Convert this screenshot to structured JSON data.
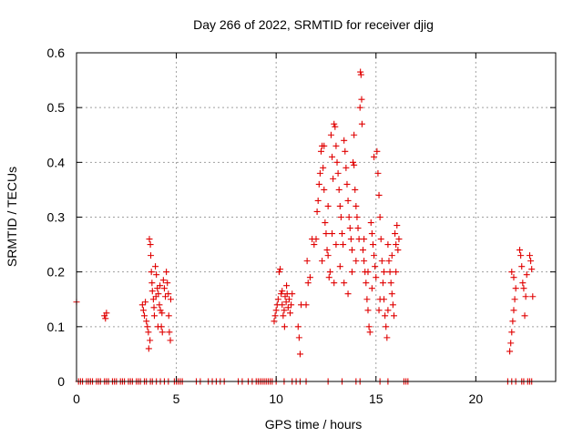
{
  "chart_data": {
    "type": "scatter",
    "title": "Day 266 of 2022, SRMTID for receiver djig",
    "xlabel": "GPS time / hours",
    "ylabel": "SRMTID / TECUs",
    "xlim": [
      0,
      24
    ],
    "ylim": [
      0,
      0.6
    ],
    "x_ticks": [
      0,
      5,
      10,
      15,
      20
    ],
    "x_tick_labels": [
      "0",
      "5",
      "10",
      "15",
      "20"
    ],
    "y_ticks": [
      0,
      0.1,
      0.2,
      0.3,
      0.4,
      0.5,
      0.6
    ],
    "y_tick_labels": [
      "0",
      "0.1",
      "0.2",
      "0.3",
      "0.4",
      "0.5",
      "0.6"
    ],
    "grid": true,
    "marker": "plus",
    "color": "#e00000",
    "series": [
      {
        "name": "SRMTID",
        "points": [
          [
            0.0,
            0.145
          ],
          [
            1.4,
            0.12
          ],
          [
            1.45,
            0.115
          ],
          [
            1.5,
            0.125
          ],
          [
            3.3,
            0.14
          ],
          [
            3.35,
            0.13
          ],
          [
            3.4,
            0.12
          ],
          [
            3.45,
            0.145
          ],
          [
            3.5,
            0.11
          ],
          [
            3.55,
            0.1
          ],
          [
            3.6,
            0.09
          ],
          [
            3.62,
            0.06
          ],
          [
            3.65,
            0.26
          ],
          [
            3.7,
            0.25
          ],
          [
            3.72,
            0.23
          ],
          [
            3.75,
            0.2
          ],
          [
            3.78,
            0.18
          ],
          [
            3.8,
            0.165
          ],
          [
            3.85,
            0.15
          ],
          [
            3.88,
            0.135
          ],
          [
            3.9,
            0.12
          ],
          [
            3.95,
            0.21
          ],
          [
            4.0,
            0.195
          ],
          [
            4.05,
            0.17
          ],
          [
            4.1,
            0.16
          ],
          [
            4.15,
            0.14
          ],
          [
            4.2,
            0.13
          ],
          [
            4.25,
            0.1
          ],
          [
            4.3,
            0.09
          ],
          [
            4.35,
            0.185
          ],
          [
            4.4,
            0.17
          ],
          [
            4.45,
            0.155
          ],
          [
            4.5,
            0.2
          ],
          [
            4.55,
            0.18
          ],
          [
            4.6,
            0.16
          ],
          [
            4.62,
            0.12
          ],
          [
            4.65,
            0.09
          ],
          [
            4.7,
            0.075
          ],
          [
            4.72,
            0.15
          ],
          [
            3.68,
            0.075
          ],
          [
            3.98,
            0.155
          ],
          [
            4.08,
            0.1
          ],
          [
            4.18,
            0.175
          ],
          [
            4.28,
            0.125
          ],
          [
            9.9,
            0.11
          ],
          [
            9.95,
            0.12
          ],
          [
            10.0,
            0.13
          ],
          [
            10.05,
            0.14
          ],
          [
            10.1,
            0.15
          ],
          [
            10.15,
            0.2
          ],
          [
            10.2,
            0.205
          ],
          [
            10.25,
            0.16
          ],
          [
            10.3,
            0.14
          ],
          [
            10.35,
            0.12
          ],
          [
            10.4,
            0.13
          ],
          [
            10.45,
            0.155
          ],
          [
            10.5,
            0.145
          ],
          [
            10.55,
            0.16
          ],
          [
            10.6,
            0.135
          ],
          [
            10.65,
            0.15
          ],
          [
            10.7,
            0.125
          ],
          [
            10.75,
            0.14
          ],
          [
            10.8,
            0.16
          ],
          [
            10.3,
            0.165
          ],
          [
            10.42,
            0.1
          ],
          [
            10.52,
            0.175
          ],
          [
            11.1,
            0.1
          ],
          [
            11.15,
            0.08
          ],
          [
            11.2,
            0.05
          ],
          [
            11.25,
            0.14
          ],
          [
            11.5,
            0.14
          ],
          [
            11.55,
            0.22
          ],
          [
            11.6,
            0.18
          ],
          [
            11.7,
            0.19
          ],
          [
            11.8,
            0.26
          ],
          [
            11.9,
            0.25
          ],
          [
            12.0,
            0.26
          ],
          [
            12.05,
            0.31
          ],
          [
            12.1,
            0.33
          ],
          [
            12.15,
            0.36
          ],
          [
            12.2,
            0.38
          ],
          [
            12.25,
            0.42
          ],
          [
            12.3,
            0.43
          ],
          [
            12.35,
            0.39
          ],
          [
            12.4,
            0.35
          ],
          [
            12.45,
            0.29
          ],
          [
            12.5,
            0.27
          ],
          [
            12.55,
            0.24
          ],
          [
            12.6,
            0.23
          ],
          [
            12.65,
            0.19
          ],
          [
            12.7,
            0.2
          ],
          [
            12.75,
            0.45
          ],
          [
            12.8,
            0.41
          ],
          [
            12.85,
            0.37
          ],
          [
            12.9,
            0.47
          ],
          [
            12.95,
            0.465
          ],
          [
            13.0,
            0.43
          ],
          [
            13.05,
            0.4
          ],
          [
            13.1,
            0.38
          ],
          [
            13.15,
            0.35
          ],
          [
            13.2,
            0.32
          ],
          [
            13.25,
            0.3
          ],
          [
            13.3,
            0.27
          ],
          [
            13.35,
            0.25
          ],
          [
            13.4,
            0.44
          ],
          [
            13.45,
            0.42
          ],
          [
            13.5,
            0.39
          ],
          [
            13.55,
            0.36
          ],
          [
            13.6,
            0.33
          ],
          [
            13.65,
            0.3
          ],
          [
            13.7,
            0.28
          ],
          [
            13.75,
            0.26
          ],
          [
            13.8,
            0.24
          ],
          [
            13.85,
            0.4
          ],
          [
            13.9,
            0.395
          ],
          [
            13.95,
            0.35
          ],
          [
            14.0,
            0.32
          ],
          [
            14.05,
            0.3
          ],
          [
            14.1,
            0.28
          ],
          [
            14.15,
            0.26
          ],
          [
            14.2,
            0.5
          ],
          [
            14.22,
            0.565
          ],
          [
            14.25,
            0.56
          ],
          [
            14.28,
            0.515
          ],
          [
            14.3,
            0.47
          ],
          [
            14.35,
            0.24
          ],
          [
            14.4,
            0.22
          ],
          [
            14.45,
            0.2
          ],
          [
            14.5,
            0.18
          ],
          [
            14.55,
            0.15
          ],
          [
            14.6,
            0.13
          ],
          [
            14.65,
            0.1
          ],
          [
            14.7,
            0.09
          ],
          [
            14.75,
            0.29
          ],
          [
            14.8,
            0.27
          ],
          [
            14.85,
            0.25
          ],
          [
            14.9,
            0.23
          ],
          [
            14.95,
            0.21
          ],
          [
            15.0,
            0.19
          ],
          [
            15.05,
            0.42
          ],
          [
            15.1,
            0.38
          ],
          [
            15.15,
            0.34
          ],
          [
            15.2,
            0.3
          ],
          [
            15.25,
            0.26
          ],
          [
            15.3,
            0.22
          ],
          [
            15.35,
            0.18
          ],
          [
            15.4,
            0.15
          ],
          [
            15.45,
            0.12
          ],
          [
            15.5,
            0.1
          ],
          [
            15.55,
            0.08
          ],
          [
            15.6,
            0.25
          ],
          [
            15.65,
            0.22
          ],
          [
            15.7,
            0.2
          ],
          [
            15.75,
            0.18
          ],
          [
            15.8,
            0.16
          ],
          [
            15.85,
            0.14
          ],
          [
            15.9,
            0.12
          ],
          [
            15.95,
            0.27
          ],
          [
            16.0,
            0.25
          ],
          [
            16.05,
            0.285
          ],
          [
            16.1,
            0.24
          ],
          [
            16.15,
            0.26
          ],
          [
            12.6,
            0.32
          ],
          [
            12.8,
            0.27
          ],
          [
            13.0,
            0.25
          ],
          [
            13.2,
            0.21
          ],
          [
            13.4,
            0.18
          ],
          [
            13.6,
            0.16
          ],
          [
            13.8,
            0.2
          ],
          [
            14.0,
            0.22
          ],
          [
            14.4,
            0.26
          ],
          [
            14.6,
            0.2
          ],
          [
            14.8,
            0.17
          ],
          [
            15.2,
            0.15
          ],
          [
            15.4,
            0.2
          ],
          [
            15.6,
            0.13
          ],
          [
            15.8,
            0.23
          ],
          [
            16.0,
            0.2
          ],
          [
            12.4,
            0.43
          ],
          [
            13.9,
            0.45
          ],
          [
            14.9,
            0.41
          ],
          [
            15.15,
            0.13
          ],
          [
            12.3,
            0.22
          ],
          [
            12.9,
            0.18
          ],
          [
            21.7,
            0.055
          ],
          [
            21.75,
            0.07
          ],
          [
            21.8,
            0.09
          ],
          [
            21.85,
            0.11
          ],
          [
            21.9,
            0.13
          ],
          [
            21.95,
            0.15
          ],
          [
            22.0,
            0.17
          ],
          [
            21.8,
            0.2
          ],
          [
            21.9,
            0.19
          ],
          [
            22.2,
            0.24
          ],
          [
            22.25,
            0.23
          ],
          [
            22.3,
            0.21
          ],
          [
            22.35,
            0.18
          ],
          [
            22.4,
            0.17
          ],
          [
            22.45,
            0.12
          ],
          [
            22.5,
            0.155
          ],
          [
            22.55,
            0.195
          ],
          [
            22.7,
            0.23
          ],
          [
            22.75,
            0.22
          ],
          [
            22.8,
            0.205
          ],
          [
            22.85,
            0.155
          ],
          [
            0.1,
            0
          ],
          [
            0.2,
            0
          ],
          [
            0.3,
            0
          ],
          [
            0.5,
            0
          ],
          [
            0.6,
            0
          ],
          [
            0.7,
            0
          ],
          [
            0.8,
            0
          ],
          [
            1.0,
            0
          ],
          [
            1.1,
            0
          ],
          [
            1.2,
            0
          ],
          [
            1.4,
            0
          ],
          [
            1.5,
            0
          ],
          [
            1.6,
            0
          ],
          [
            1.8,
            0
          ],
          [
            1.9,
            0
          ],
          [
            2.0,
            0
          ],
          [
            2.2,
            0
          ],
          [
            2.3,
            0
          ],
          [
            2.4,
            0
          ],
          [
            2.6,
            0
          ],
          [
            2.7,
            0
          ],
          [
            2.8,
            0
          ],
          [
            3.0,
            0
          ],
          [
            3.1,
            0
          ],
          [
            3.2,
            0
          ],
          [
            3.4,
            0
          ],
          [
            3.5,
            0
          ],
          [
            3.7,
            0
          ],
          [
            3.8,
            0
          ],
          [
            4.0,
            0
          ],
          [
            4.2,
            0
          ],
          [
            4.4,
            0
          ],
          [
            4.6,
            0
          ],
          [
            4.9,
            0
          ],
          [
            5.0,
            0
          ],
          [
            5.1,
            0
          ],
          [
            5.2,
            0
          ],
          [
            5.3,
            0
          ],
          [
            6.0,
            0
          ],
          [
            6.2,
            0
          ],
          [
            6.6,
            0
          ],
          [
            6.8,
            0
          ],
          [
            7.0,
            0
          ],
          [
            7.2,
            0
          ],
          [
            7.4,
            0
          ],
          [
            8.1,
            0
          ],
          [
            8.3,
            0
          ],
          [
            8.6,
            0
          ],
          [
            8.8,
            0
          ],
          [
            9.0,
            0
          ],
          [
            9.1,
            0
          ],
          [
            9.2,
            0
          ],
          [
            9.3,
            0
          ],
          [
            9.4,
            0
          ],
          [
            9.5,
            0
          ],
          [
            9.6,
            0
          ],
          [
            9.7,
            0
          ],
          [
            9.8,
            0
          ],
          [
            10.0,
            0
          ],
          [
            10.4,
            0
          ],
          [
            10.8,
            0
          ],
          [
            11.0,
            0
          ],
          [
            11.2,
            0
          ],
          [
            11.5,
            0
          ],
          [
            12.6,
            0
          ],
          [
            13.3,
            0
          ],
          [
            14.0,
            0
          ],
          [
            14.2,
            0
          ],
          [
            15.2,
            0
          ],
          [
            15.6,
            0
          ],
          [
            16.4,
            0
          ],
          [
            16.5,
            0
          ],
          [
            16.6,
            0
          ],
          [
            21.6,
            0
          ],
          [
            21.8,
            0
          ],
          [
            22.0,
            0
          ],
          [
            22.3,
            0
          ],
          [
            22.4,
            0
          ],
          [
            22.6,
            0
          ],
          [
            22.7,
            0
          ],
          [
            22.8,
            0
          ]
        ]
      }
    ]
  }
}
